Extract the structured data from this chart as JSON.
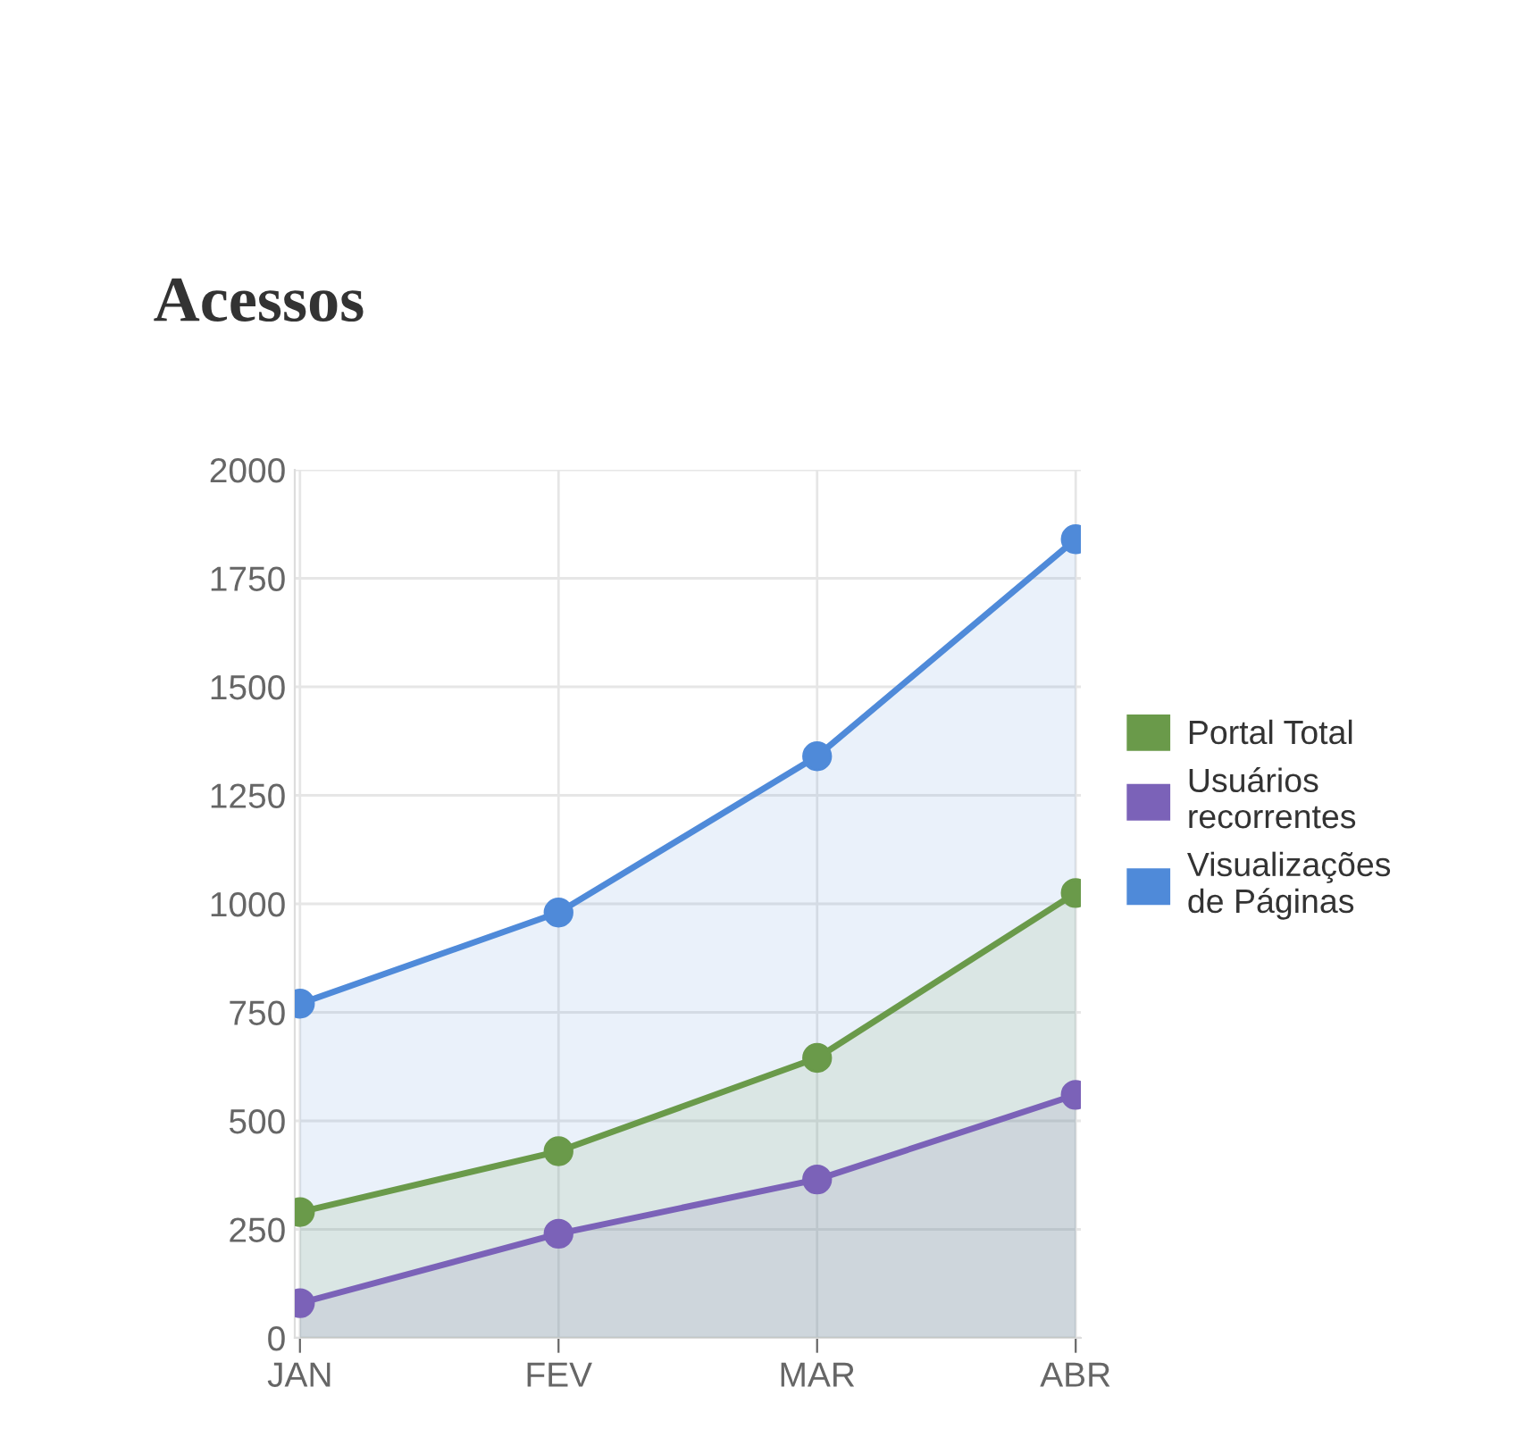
{
  "chart_data": {
    "type": "area",
    "title": "Acessos",
    "categories": [
      "JAN",
      "FEV",
      "MAR",
      "ABR"
    ],
    "series": [
      {
        "name": "Portal Total",
        "color": "#6a9a4a",
        "values": [
          290,
          430,
          645,
          1025
        ]
      },
      {
        "name": "Usuários recorrentes",
        "color": "#7b62b8",
        "values": [
          80,
          240,
          365,
          560
        ]
      },
      {
        "name": "Visualizações de Páginas",
        "color": "#4f8ad9",
        "values": [
          770,
          980,
          1340,
          1840
        ]
      }
    ],
    "ylim": [
      0,
      2000
    ],
    "yticks": [
      0,
      250,
      500,
      750,
      1000,
      1250,
      1500,
      1750,
      2000
    ],
    "grid": true,
    "legend": "right",
    "marker": "circle",
    "line_style": "solid"
  }
}
